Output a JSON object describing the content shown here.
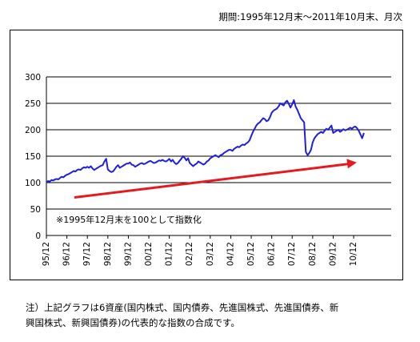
{
  "header": {
    "period": "期間:1995年12月末～2011年10月末、月次"
  },
  "chart_data": {
    "type": "line",
    "ylim": [
      0,
      300
    ],
    "yticks": [
      0,
      50,
      100,
      150,
      200,
      250,
      300
    ],
    "x_tick_labels": [
      "95/12",
      "96/12",
      "97/12",
      "98/12",
      "99/12",
      "00/12",
      "01/12",
      "02/12",
      "03/12",
      "04/12",
      "05/12",
      "06/12",
      "07/12",
      "08/12",
      "09/12",
      "10/12"
    ],
    "x_start": "1995-12",
    "grid": "horizontal",
    "line_color": "#1f1fdf",
    "arrow_color": "#e8191e",
    "annotation": "※1995年12月末を100として指数化",
    "series": [
      {
        "values": [
          100,
          103,
          102,
          105,
          104,
          106,
          107,
          106,
          109,
          111,
          110,
          113,
          115,
          116,
          118,
          120,
          122,
          121,
          124,
          125,
          124,
          127,
          129,
          128,
          130,
          128,
          131,
          127,
          124,
          126,
          128,
          130,
          132,
          133,
          140,
          145,
          125,
          122,
          120,
          121,
          125,
          130,
          133,
          128,
          130,
          132,
          134,
          136,
          136,
          138,
          134,
          133,
          130,
          132,
          134,
          136,
          137,
          135,
          136,
          138,
          140,
          141,
          139,
          137,
          138,
          140,
          142,
          141,
          143,
          141,
          140,
          142,
          145,
          140,
          143,
          138,
          135,
          137,
          141,
          145,
          150,
          147,
          142,
          146,
          137,
          134,
          131,
          134,
          136,
          140,
          138,
          136,
          134,
          136,
          140,
          142,
          146,
          148,
          150,
          152,
          150,
          148,
          152,
          153,
          156,
          158,
          160,
          162,
          162,
          160,
          164,
          166,
          168,
          167,
          170,
          172,
          171,
          174,
          176,
          180,
          188,
          196,
          202,
          208,
          212,
          214,
          218,
          222,
          220,
          216,
          218,
          224,
          232,
          236,
          238,
          240,
          244,
          250,
          248,
          246,
          252,
          255,
          249,
          242,
          248,
          256,
          244,
          238,
          230,
          222,
          218,
          214,
          158,
          152,
          156,
          162,
          176,
          184,
          188,
          192,
          194,
          196,
          194,
          198,
          202,
          200,
          204,
          208,
          194,
          196,
          198,
          200,
          196,
          198,
          201,
          199,
          200,
          202,
          204,
          202,
          205,
          206,
          203,
          198,
          191,
          184,
          194
        ]
      }
    ]
  },
  "notes": {
    "line1": "注）上記グラフは6資産(国内株式、国内債券、先進国株式、先進国債券、新",
    "line2": "興国株式、新興国債券)の代表的な指数の合成です。"
  }
}
